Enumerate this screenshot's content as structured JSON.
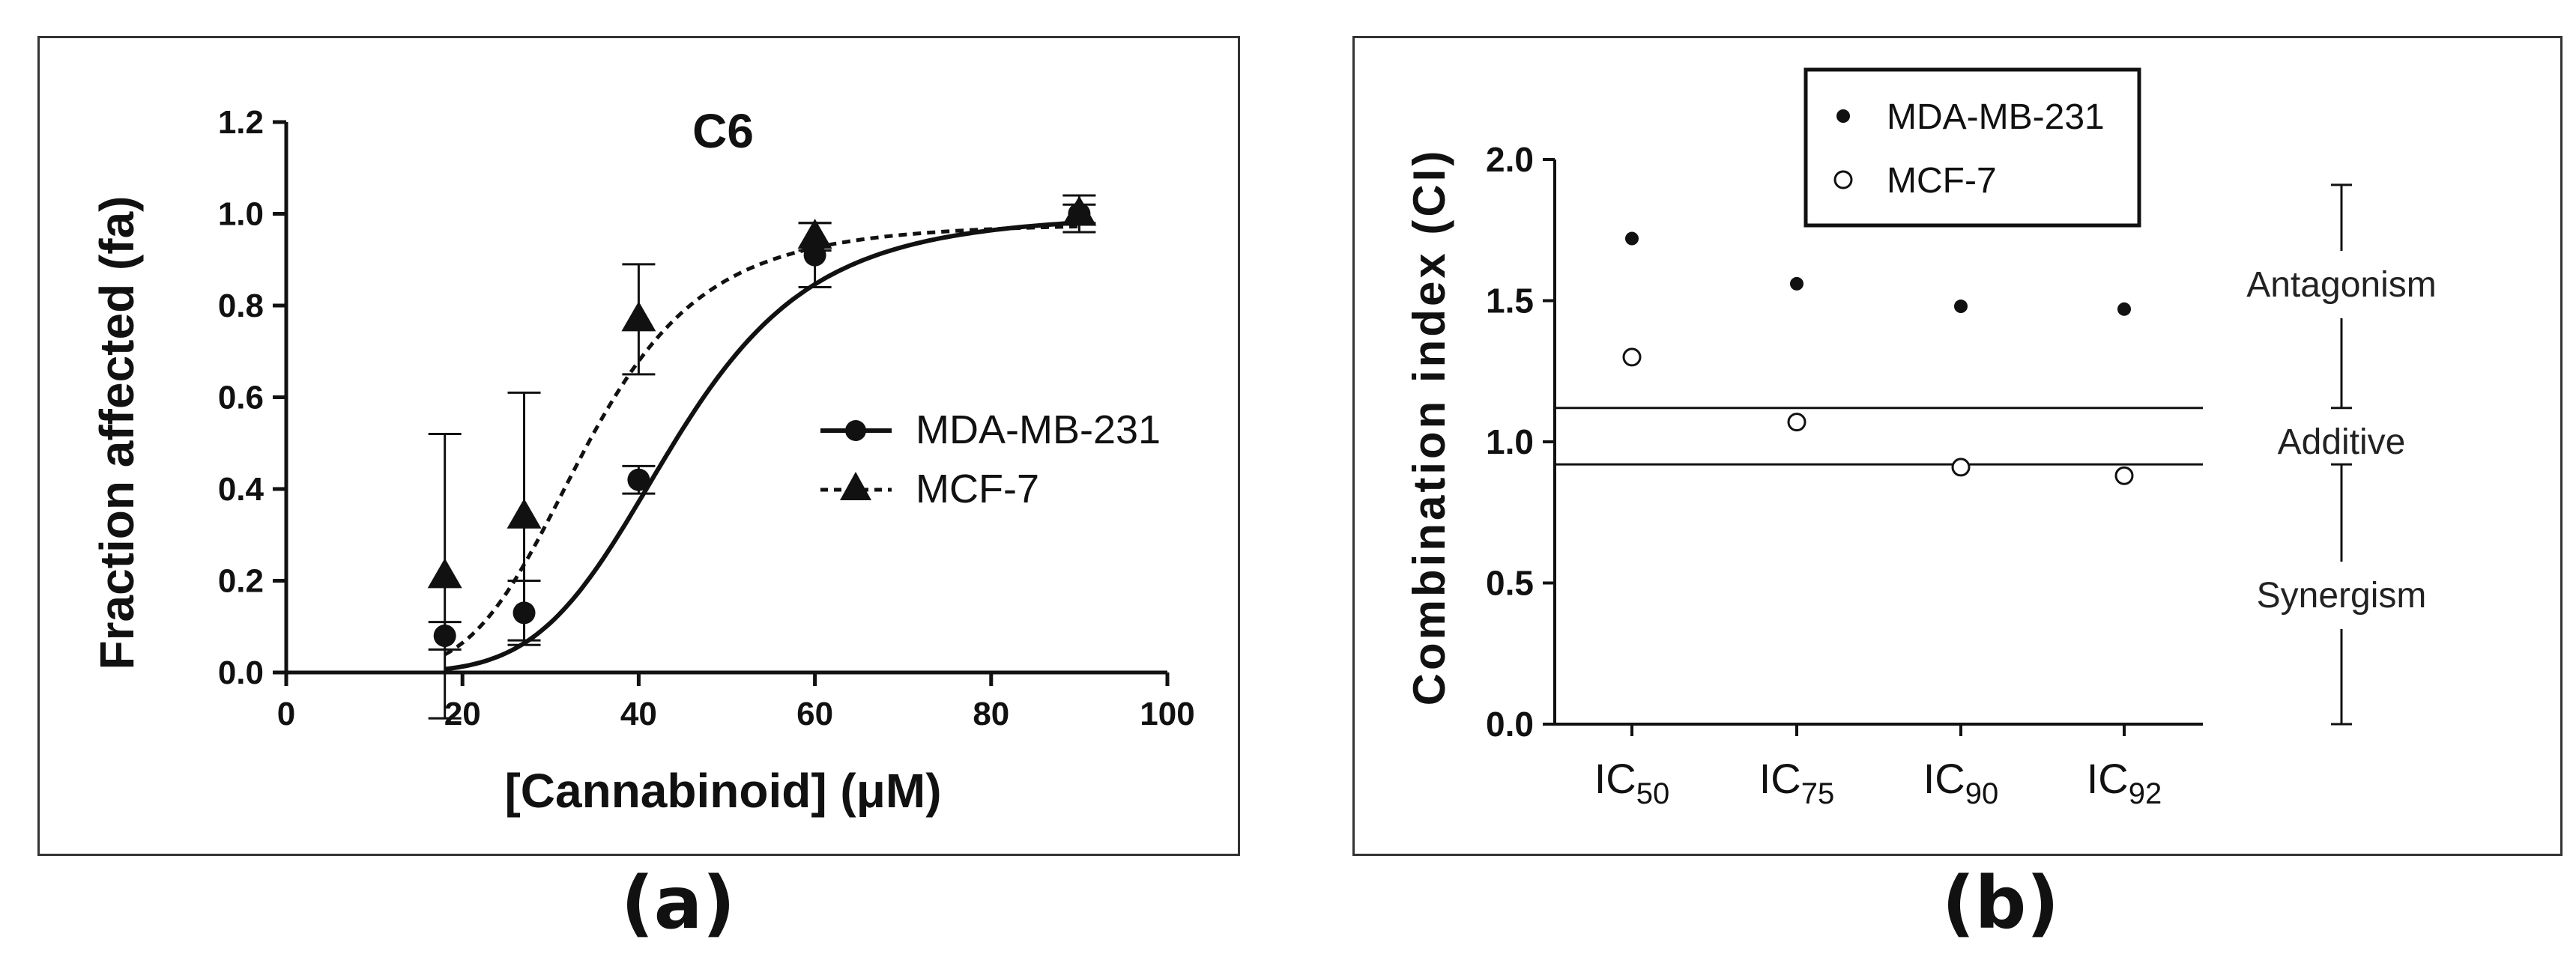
{
  "panels": {
    "a_label": "(a)",
    "b_label": "(b)"
  },
  "chart_data": [
    {
      "type": "line",
      "title": "C6",
      "xlabel": "[Cannabinoid] (μM)",
      "ylabel": "Fraction affected (fa)",
      "xlim": [
        0,
        100
      ],
      "ylim": [
        0,
        1.2
      ],
      "x_ticks": [
        0,
        20,
        40,
        60,
        80,
        100
      ],
      "y_ticks": [
        "0.0",
        "0.2",
        "0.4",
        "0.6",
        "0.8",
        "1.0",
        "1.2"
      ],
      "legend_position": "center-right",
      "series": [
        {
          "name": "MDA-MB-231",
          "marker": "circle",
          "line_style": "solid",
          "x": [
            18,
            27,
            40,
            60,
            90
          ],
          "y": [
            0.08,
            0.13,
            0.42,
            0.91,
            1.0
          ],
          "error": [
            0.03,
            0.07,
            0.03,
            0.07,
            0.04
          ],
          "fit": {
            "ic50": 44,
            "hill": 5.5,
            "top": 1.0
          }
        },
        {
          "name": "MCF-7",
          "marker": "triangle",
          "line_style": "dashed",
          "x": [
            18,
            27,
            40,
            60,
            90
          ],
          "y": [
            0.21,
            0.34,
            0.77,
            0.95,
            1.0
          ],
          "error": [
            0.31,
            0.27,
            0.12,
            0.03,
            0.02
          ],
          "fit": {
            "ic50": 34,
            "hill": 5.0,
            "top": 0.98
          }
        }
      ]
    },
    {
      "type": "scatter",
      "ylabel": "Combination index (CI)",
      "ylim": [
        0,
        2.0
      ],
      "y_ticks": [
        "0.0",
        "0.5",
        "1.0",
        "1.5",
        "2.0"
      ],
      "categories": [
        {
          "main": "IC",
          "sub": "50"
        },
        {
          "main": "IC",
          "sub": "75"
        },
        {
          "main": "IC",
          "sub": "90"
        },
        {
          "main": "IC",
          "sub": "92"
        }
      ],
      "legend_position": "top-center",
      "series": [
        {
          "name": "MDA-MB-231",
          "marker": "filled-circle",
          "values": [
            1.72,
            1.56,
            1.48,
            1.47
          ]
        },
        {
          "name": "MCF-7",
          "marker": "open-circle",
          "values": [
            1.3,
            1.07,
            0.91,
            0.88
          ]
        }
      ],
      "reference_lines": [
        1.12,
        0.92
      ],
      "zones": [
        {
          "label": "Antagonism",
          "range": [
            1.12,
            1.91
          ]
        },
        {
          "label": "Additive",
          "range": [
            0.92,
            1.12
          ]
        },
        {
          "label": "Synergism",
          "range": [
            0,
            0.92
          ]
        }
      ]
    }
  ]
}
